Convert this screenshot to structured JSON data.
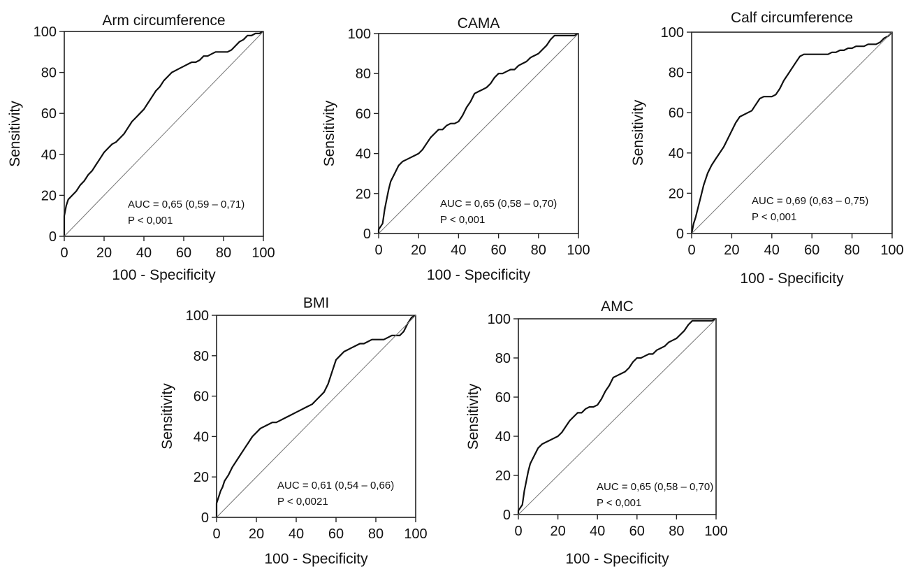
{
  "chart_data": [
    {
      "type": "line",
      "title": "Arm circumference",
      "xlabel": "100 - Specificity",
      "ylabel": "Sensitivity",
      "xlim": [
        0,
        100
      ],
      "ylim": [
        0,
        100
      ],
      "xticks": [
        "0",
        "20",
        "40",
        "60",
        "80",
        "100"
      ],
      "yticks": [
        "0",
        "20",
        "40",
        "60",
        "80",
        "100"
      ],
      "annotation": [
        "AUC = 0,65 (0,59 – 0,71)",
        "P < 0,001"
      ],
      "series": [
        {
          "role": "roc",
          "x": [
            0,
            0,
            1,
            2,
            4,
            6,
            8,
            10,
            12,
            14,
            16,
            18,
            20,
            22,
            24,
            26,
            28,
            30,
            32,
            34,
            36,
            38,
            40,
            42,
            44,
            46,
            48,
            50,
            52,
            54,
            56,
            58,
            60,
            62,
            64,
            66,
            68,
            70,
            72,
            74,
            76,
            78,
            80,
            82,
            84,
            86,
            88,
            90,
            92,
            94,
            96,
            98,
            100
          ],
          "y": [
            0,
            10,
            15,
            18,
            20,
            22,
            25,
            27,
            30,
            32,
            35,
            38,
            41,
            43,
            45,
            46,
            48,
            50,
            53,
            56,
            58,
            60,
            62,
            65,
            68,
            71,
            73,
            76,
            78,
            80,
            81,
            82,
            83,
            84,
            85,
            85,
            86,
            88,
            88,
            89,
            90,
            90,
            90,
            90,
            91,
            93,
            95,
            96,
            98,
            98,
            99,
            99,
            100
          ]
        },
        {
          "role": "reference",
          "x": [
            0,
            100
          ],
          "y": [
            0,
            100
          ]
        }
      ]
    },
    {
      "type": "line",
      "title": "CAMA",
      "xlabel": "100 - Specificity",
      "ylabel": "Sensitivity",
      "xlim": [
        0,
        100
      ],
      "ylim": [
        0,
        100
      ],
      "xticks": [
        "0",
        "20",
        "40",
        "60",
        "80",
        "100"
      ],
      "yticks": [
        "0",
        "20",
        "40",
        "60",
        "80",
        "100"
      ],
      "annotation": [
        "AUC = 0,65 (0,58 – 0,70)",
        "P < 0,001"
      ],
      "series": [
        {
          "role": "roc",
          "x": [
            0,
            0,
            2,
            3,
            4,
            5,
            6,
            8,
            10,
            12,
            14,
            16,
            18,
            20,
            22,
            24,
            26,
            28,
            30,
            32,
            34,
            36,
            38,
            40,
            42,
            44,
            46,
            48,
            50,
            52,
            54,
            56,
            58,
            60,
            62,
            64,
            66,
            68,
            70,
            72,
            74,
            76,
            78,
            80,
            82,
            84,
            86,
            88,
            90,
            92,
            94,
            96,
            98,
            100
          ],
          "y": [
            0,
            2,
            5,
            12,
            17,
            22,
            26,
            30,
            34,
            36,
            37,
            38,
            39,
            40,
            42,
            45,
            48,
            50,
            52,
            52,
            54,
            55,
            55,
            56,
            59,
            63,
            66,
            70,
            71,
            72,
            73,
            75,
            78,
            80,
            80,
            81,
            82,
            82,
            84,
            85,
            86,
            88,
            89,
            90,
            92,
            94,
            97,
            99,
            99,
            99,
            99,
            99,
            99,
            100
          ]
        },
        {
          "role": "reference",
          "x": [
            0,
            100
          ],
          "y": [
            0,
            100
          ]
        }
      ]
    },
    {
      "type": "line",
      "title": "Calf circumference",
      "xlabel": "100 - Specificity",
      "ylabel": "Sensitivity",
      "xlim": [
        0,
        100
      ],
      "ylim": [
        0,
        100
      ],
      "xticks": [
        "0",
        "20",
        "40",
        "60",
        "80",
        "100"
      ],
      "yticks": [
        "0",
        "20",
        "40",
        "60",
        "80",
        "100"
      ],
      "annotation": [
        "AUC = 0,69 (0,63 – 0,75)",
        "P < 0,001"
      ],
      "series": [
        {
          "role": "roc",
          "x": [
            0,
            1,
            2,
            3,
            4,
            5,
            6,
            8,
            10,
            12,
            14,
            16,
            18,
            20,
            22,
            24,
            26,
            28,
            30,
            32,
            34,
            36,
            38,
            40,
            42,
            44,
            46,
            48,
            50,
            52,
            54,
            56,
            58,
            60,
            62,
            64,
            66,
            68,
            70,
            72,
            74,
            76,
            78,
            80,
            82,
            84,
            86,
            88,
            90,
            92,
            94,
            96,
            98,
            100
          ],
          "y": [
            0,
            5,
            8,
            12,
            16,
            20,
            24,
            30,
            34,
            37,
            40,
            43,
            47,
            51,
            55,
            58,
            59,
            60,
            61,
            64,
            67,
            68,
            68,
            68,
            69,
            72,
            76,
            79,
            82,
            85,
            88,
            89,
            89,
            89,
            89,
            89,
            89,
            89,
            90,
            90,
            91,
            91,
            92,
            92,
            93,
            93,
            93,
            94,
            94,
            94,
            95,
            97,
            98,
            100
          ]
        },
        {
          "role": "reference",
          "x": [
            0,
            100
          ],
          "y": [
            0,
            100
          ]
        }
      ]
    },
    {
      "type": "line",
      "title": "BMI",
      "xlabel": "100 - Specificity",
      "ylabel": "Sensitivity",
      "xlim": [
        0,
        100
      ],
      "ylim": [
        0,
        100
      ],
      "xticks": [
        "0",
        "20",
        "40",
        "60",
        "80",
        "100"
      ],
      "yticks": [
        "0",
        "20",
        "40",
        "60",
        "80",
        "100"
      ],
      "annotation": [
        "AUC = 0,61 (0,54 – 0,66)",
        "P < 0,0021"
      ],
      "series": [
        {
          "role": "roc",
          "x": [
            0,
            0,
            1,
            2,
            3,
            4,
            6,
            8,
            10,
            12,
            14,
            16,
            18,
            20,
            22,
            24,
            26,
            28,
            30,
            32,
            34,
            36,
            38,
            40,
            42,
            44,
            46,
            48,
            50,
            52,
            54,
            56,
            58,
            60,
            62,
            64,
            66,
            68,
            70,
            72,
            74,
            76,
            78,
            80,
            82,
            84,
            86,
            88,
            90,
            92,
            94,
            96,
            98,
            100
          ],
          "y": [
            0,
            7,
            10,
            13,
            15,
            18,
            21,
            25,
            28,
            31,
            34,
            37,
            40,
            42,
            44,
            45,
            46,
            47,
            47,
            48,
            49,
            50,
            51,
            52,
            53,
            54,
            55,
            56,
            58,
            60,
            62,
            66,
            72,
            78,
            80,
            82,
            83,
            84,
            85,
            86,
            86,
            87,
            88,
            88,
            88,
            88,
            89,
            90,
            90,
            90,
            92,
            96,
            99,
            100
          ]
        },
        {
          "role": "reference",
          "x": [
            0,
            100
          ],
          "y": [
            0,
            100
          ]
        }
      ]
    },
    {
      "type": "line",
      "title": "AMC",
      "xlabel": "100 - Specificity",
      "ylabel": "Sensitivity",
      "xlim": [
        0,
        100
      ],
      "ylim": [
        0,
        100
      ],
      "xticks": [
        "0",
        "20",
        "40",
        "60",
        "80",
        "100"
      ],
      "yticks": [
        "0",
        "20",
        "40",
        "60",
        "80",
        "100"
      ],
      "annotation": [
        "AUC = 0,65 (0,58 – 0,70)",
        "P < 0,001"
      ],
      "series": [
        {
          "role": "roc",
          "x": [
            0,
            0,
            2,
            3,
            4,
            5,
            6,
            8,
            10,
            12,
            14,
            16,
            18,
            20,
            22,
            24,
            26,
            28,
            30,
            32,
            34,
            36,
            38,
            40,
            42,
            44,
            46,
            48,
            50,
            52,
            54,
            56,
            58,
            60,
            62,
            64,
            66,
            68,
            70,
            72,
            74,
            76,
            78,
            80,
            82,
            84,
            86,
            88,
            90,
            92,
            94,
            96,
            98,
            100
          ],
          "y": [
            0,
            2,
            5,
            12,
            17,
            22,
            26,
            30,
            34,
            36,
            37,
            38,
            39,
            40,
            42,
            45,
            48,
            50,
            52,
            52,
            54,
            55,
            55,
            56,
            59,
            63,
            66,
            70,
            71,
            72,
            73,
            75,
            78,
            80,
            80,
            81,
            82,
            82,
            84,
            85,
            86,
            88,
            89,
            90,
            92,
            94,
            97,
            99,
            99,
            99,
            99,
            99,
            99,
            100
          ]
        },
        {
          "role": "reference",
          "x": [
            0,
            100
          ],
          "y": [
            0,
            100
          ]
        }
      ]
    }
  ]
}
